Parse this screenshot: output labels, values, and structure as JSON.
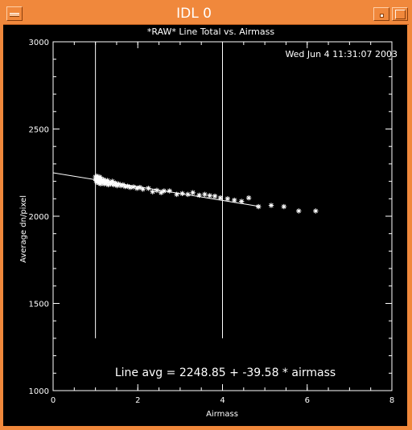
{
  "window": {
    "title": "IDL 0"
  },
  "chart_data": {
    "type": "scatter",
    "title": "*RAW* Line Total vs. Airmass",
    "xlabel": "Airmass",
    "ylabel": "Average dn/pixel",
    "timestamp": "Wed Jun  4 11:31:07 2003",
    "xlim": [
      0,
      8
    ],
    "ylim": [
      1000,
      3000
    ],
    "xticks": [
      0,
      2,
      4,
      6,
      8
    ],
    "yticks": [
      1000,
      1500,
      2000,
      2500,
      3000
    ],
    "vlines": [
      1.0,
      4.0
    ],
    "fit": {
      "intercept": 2248.85,
      "slope": -39.58,
      "x_range": [
        0.0,
        4.9
      ]
    },
    "annotation": "Line avg = 2248.85 + -39.58 * airmass",
    "points": [
      [
        1.0,
        2225
      ],
      [
        1.01,
        2205
      ],
      [
        1.02,
        2215
      ],
      [
        1.03,
        2195
      ],
      [
        1.03,
        2230
      ],
      [
        1.04,
        2210
      ],
      [
        1.05,
        2220
      ],
      [
        1.06,
        2200
      ],
      [
        1.07,
        2215
      ],
      [
        1.08,
        2190
      ],
      [
        1.09,
        2210
      ],
      [
        1.1,
        2225
      ],
      [
        1.11,
        2200
      ],
      [
        1.12,
        2185
      ],
      [
        1.13,
        2215
      ],
      [
        1.15,
        2205
      ],
      [
        1.17,
        2195
      ],
      [
        1.19,
        2210
      ],
      [
        1.21,
        2185
      ],
      [
        1.23,
        2200
      ],
      [
        1.25,
        2190
      ],
      [
        1.28,
        2205
      ],
      [
        1.3,
        2180
      ],
      [
        1.33,
        2195
      ],
      [
        1.36,
        2185
      ],
      [
        1.4,
        2200
      ],
      [
        1.43,
        2180
      ],
      [
        1.47,
        2190
      ],
      [
        1.51,
        2175
      ],
      [
        1.55,
        2185
      ],
      [
        1.6,
        2175
      ],
      [
        1.65,
        2180
      ],
      [
        1.7,
        2170
      ],
      [
        1.76,
        2172
      ],
      [
        1.82,
        2165
      ],
      [
        1.9,
        2168
      ],
      [
        1.98,
        2160
      ],
      [
        2.05,
        2165
      ],
      [
        2.12,
        2155
      ],
      [
        2.25,
        2160
      ],
      [
        2.35,
        2140
      ],
      [
        2.45,
        2148
      ],
      [
        2.55,
        2135
      ],
      [
        2.62,
        2145
      ],
      [
        2.75,
        2145
      ],
      [
        2.92,
        2125
      ],
      [
        3.05,
        2130
      ],
      [
        3.18,
        2125
      ],
      [
        3.3,
        2135
      ],
      [
        3.45,
        2120
      ],
      [
        3.58,
        2125
      ],
      [
        3.7,
        2118
      ],
      [
        3.82,
        2115
      ],
      [
        3.95,
        2105
      ],
      [
        4.12,
        2100
      ],
      [
        4.28,
        2092
      ],
      [
        4.45,
        2085
      ],
      [
        4.62,
        2105
      ],
      [
        4.85,
        2055
      ],
      [
        5.15,
        2062
      ],
      [
        5.45,
        2055
      ],
      [
        5.8,
        2030
      ],
      [
        6.2,
        2030
      ]
    ]
  }
}
